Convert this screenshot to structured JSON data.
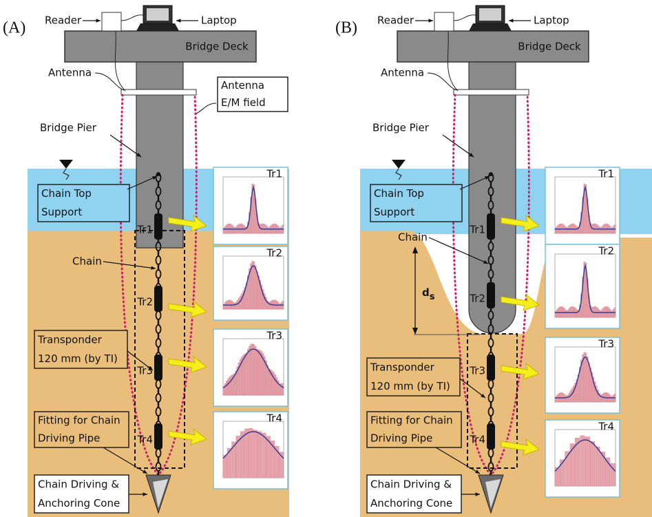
{
  "panels": [
    {
      "label": "(A)",
      "reader": "Reader",
      "laptop": "Laptop",
      "deck": "Bridge Deck",
      "antenna": "Antenna",
      "field": [
        "Antenna",
        "E/M field"
      ],
      "pier": "Bridge Pier",
      "support": [
        "Chain Top",
        "Support"
      ],
      "chain": "Chain",
      "transponder": [
        "Transponder",
        "120 mm (by TI)"
      ],
      "fitting": [
        "Fitting for Chain",
        "Driving Pipe"
      ],
      "cone": [
        "Chain Driving &",
        "Anchoring Cone"
      ],
      "tags": [
        "Tr1",
        "Tr2",
        "Tr3",
        "Tr4"
      ],
      "plots": [
        "Tr1",
        "Tr2",
        "Tr3",
        "Tr4"
      ]
    },
    {
      "label": "(B)",
      "reader": "Reader",
      "laptop": "Laptop",
      "deck": "Bridge Deck",
      "antenna": "Antenna",
      "pier": "Bridge Pier",
      "support": [
        "Chain Top",
        "Support"
      ],
      "chain": "Chain",
      "scour": {
        "symbol": "d",
        "sub": "s"
      },
      "transponder": [
        "Transponder",
        "120 mm (by TI)"
      ],
      "fitting": [
        "Fitting for Chain",
        "Driving Pipe"
      ],
      "cone": [
        "Chain Driving &",
        "Anchoring Cone"
      ],
      "tags": [
        "Tr1",
        "Tr2",
        "Tr3",
        "Tr4"
      ],
      "plots": [
        "Tr1",
        "Tr2",
        "Tr3",
        "Tr4"
      ]
    }
  ]
}
